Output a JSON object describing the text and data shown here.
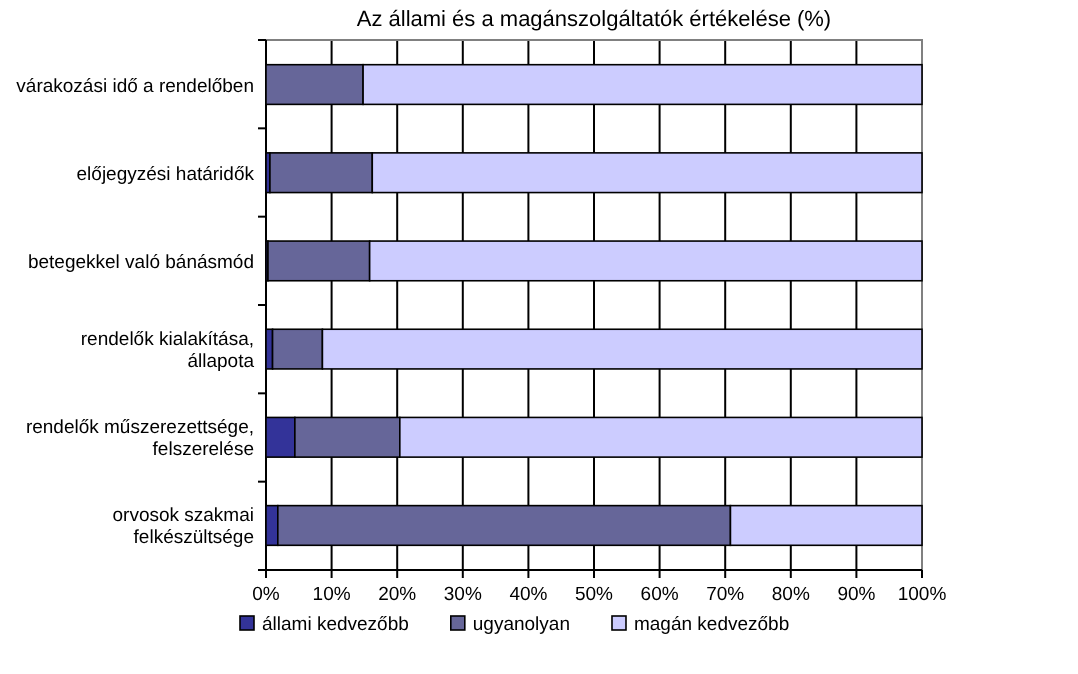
{
  "chart_data": {
    "type": "bar",
    "orientation": "horizontal",
    "stacked": true,
    "title": "Az állami és a magánszolgáltatók értékelése (%)",
    "categories": [
      "várakozási idő a rendelőben",
      "előjegyzési határidők",
      "betegekkel való bánásmód",
      "rendelők kialakítása, állapota",
      "rendelők műszerezettsége, felszerelése",
      "orvosok szakmai felkészültsége"
    ],
    "series": [
      {
        "name": "állami kedvezőbb",
        "color": "#333399",
        "values": [
          0,
          0.6,
          0.3,
          1.0,
          4.4,
          1.8
        ]
      },
      {
        "name": "ugyanolyan",
        "color": "#666699",
        "values": [
          14.8,
          15.6,
          15.5,
          7.6,
          16.0,
          69.0
        ]
      },
      {
        "name": "magán kedvezőbb",
        "color": "#ccccff",
        "values": [
          85.2,
          83.8,
          84.2,
          91.4,
          79.6,
          29.2
        ]
      }
    ],
    "xlim": [
      0,
      100
    ],
    "xticks": [
      {
        "value": 0,
        "label": "0%"
      },
      {
        "value": 10,
        "label": "10%"
      },
      {
        "value": 20,
        "label": "20%"
      },
      {
        "value": 30,
        "label": "30%"
      },
      {
        "value": 40,
        "label": "40%"
      },
      {
        "value": 50,
        "label": "50%"
      },
      {
        "value": 60,
        "label": "60%"
      },
      {
        "value": 70,
        "label": "70%"
      },
      {
        "value": 80,
        "label": "80%"
      },
      {
        "value": 90,
        "label": "90%"
      },
      {
        "value": 100,
        "label": "100%"
      }
    ],
    "grid": "x",
    "legend": "bottom"
  }
}
